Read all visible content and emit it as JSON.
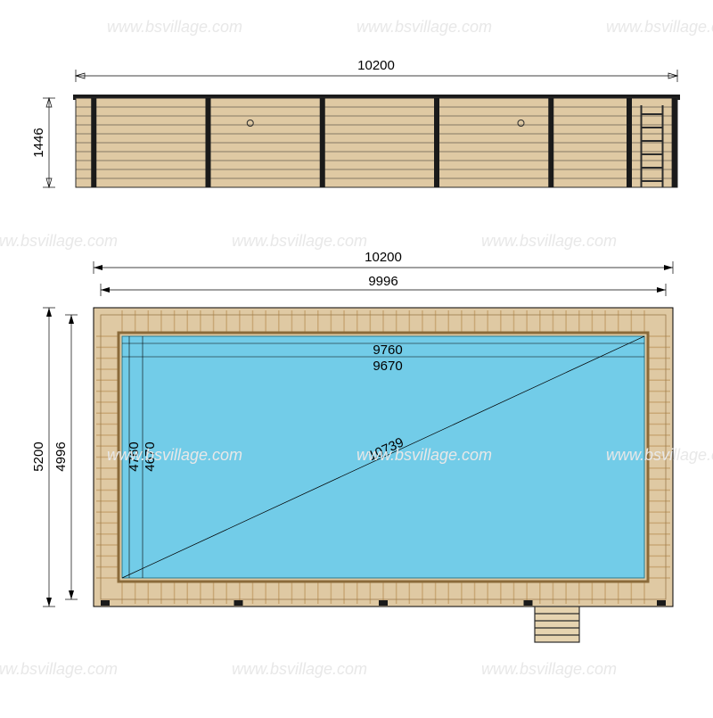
{
  "watermark": "www.bsvillage.com",
  "elevation": {
    "width_label": "10200",
    "height_label": "1446",
    "wood_color": "#dfc9a3",
    "line_color": "#2b2b2b",
    "plank_count": 10,
    "post_positions": [
      0.03,
      0.22,
      0.41,
      0.6,
      0.79,
      0.92,
      0.995
    ]
  },
  "plan": {
    "outer_w_label": "10200",
    "deck_w_label": "9996",
    "pool_w1_label": "9760",
    "pool_w2_label": "9670",
    "outer_h_label": "5200",
    "deck_h_label": "4996",
    "pool_h1_label": "4760",
    "pool_h2_label": "4670",
    "diagonal_label": "10739",
    "wood_color": "#dfc9a3",
    "wood_edge": "#8a6a3a",
    "wood_joint": "#c9a876",
    "water_color": "#72cce8",
    "line_color": "#000000",
    "deck_width": 32
  },
  "colors": {
    "background": "#ffffff",
    "watermark": "#e8e8e8"
  }
}
